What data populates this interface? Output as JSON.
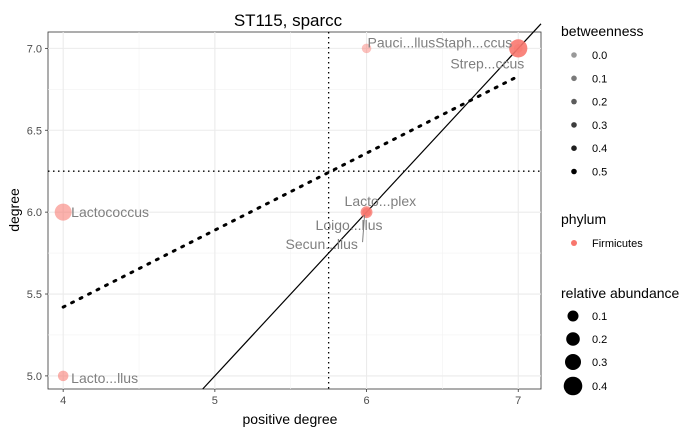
{
  "chart_data": {
    "type": "scatter",
    "title": "ST115, sparcc",
    "xlabel": "positive degree",
    "ylabel": "degree",
    "xlim": [
      3.9,
      7.15
    ],
    "ylim": [
      4.92,
      7.1
    ],
    "x_ticks": [
      "4",
      "5",
      "6",
      "7"
    ],
    "y_ticks": [
      "5.0",
      "5.5",
      "6.0",
      "6.5",
      "7.0"
    ],
    "points": [
      {
        "label": "Pauci...llus",
        "x": 6.0,
        "y": 7.0,
        "abundance": 0.05,
        "betweenness": 0.0
      },
      {
        "label": "Staph...ccus",
        "x": 7.0,
        "y": 7.0,
        "abundance": 0.32,
        "betweenness": 0.4
      },
      {
        "label": "Strep...ccus",
        "x": 7.0,
        "y": 7.0,
        "abundance": 0.02,
        "betweenness": 0.0
      },
      {
        "label": "Lactococcus",
        "x": 4.0,
        "y": 6.0,
        "abundance": 0.28,
        "betweenness": 0.1
      },
      {
        "label": "Lacto...plex",
        "x": 6.0,
        "y": 6.0,
        "abundance": 0.12,
        "betweenness": 0.3
      },
      {
        "label": "Loigo...llus",
        "x": 6.0,
        "y": 6.0,
        "abundance": 0.02,
        "betweenness": 0.1
      },
      {
        "label": "Secun...llus",
        "x": 6.0,
        "y": 6.0,
        "abundance": 0.02,
        "betweenness": 0.1
      },
      {
        "label": "Lacto...llus",
        "x": 4.0,
        "y": 5.0,
        "abundance": 0.08,
        "betweenness": 0.1
      }
    ],
    "identity_line": {
      "slope": 1,
      "intercept": 0
    },
    "regression_line": {
      "slope": 0.47,
      "intercept": 3.54,
      "x_range": [
        4,
        7
      ]
    },
    "vline_x": 5.75,
    "hline_y": 6.25,
    "point_color": "#f8766d"
  },
  "legend": {
    "betweenness": {
      "title": "betweenness",
      "items": [
        "0.0",
        "0.1",
        "0.2",
        "0.3",
        "0.4",
        "0.5"
      ]
    },
    "phylum": {
      "title": "phylum",
      "items": [
        "Firmicutes"
      ]
    },
    "abundance": {
      "title": "relative abundance",
      "items": [
        "0.1",
        "0.2",
        "0.3",
        "0.4"
      ]
    }
  }
}
